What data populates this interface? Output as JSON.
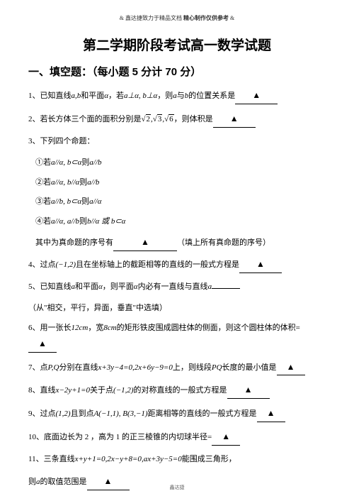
{
  "header": {
    "left": "& 鑫达捷致力于精品文档",
    "center": "精心制作仅供参考",
    "right": "&"
  },
  "title": "第二学期阶段考试高一数学试题",
  "section1": "一、填空题：（每小题 5 分计 70 分）",
  "q1": {
    "num": "1、",
    "pre": "已知直线",
    "var1": "a,b",
    "t2": "和平面",
    "var2": "α",
    "t3": "，若",
    "expr": "a⊥α, b⊥α",
    "t4": "，则",
    "v3": "a",
    "t5": "与",
    "v4": "b",
    "t6": "的位置关系是",
    "tri": "▲"
  },
  "q2": {
    "num": "2、",
    "t1": "若长方体三个面的面积分别是",
    "r1": "2",
    "r2": "3",
    "r3": "6",
    "t2": "，则体积是",
    "tri": "▲"
  },
  "q3": {
    "num": "3、",
    "t1": "下列四个命题："
  },
  "q3a": {
    "num": "①",
    "t": "若",
    "e": "a//α, b⊂α",
    "tail": "则",
    "e2": "a//b"
  },
  "q3b": {
    "num": "②",
    "t": "若",
    "e": "a//α, b//α",
    "tail": "则",
    "e2": "a//b"
  },
  "q3c": {
    "num": "③",
    "t": "若",
    "e": "a//b, b⊂α",
    "tail": "则",
    "e2": "a//α"
  },
  "q3d": {
    "num": "④",
    "t": "若",
    "e": "a//α, a//b",
    "tail": "则",
    "e2": "b//α 或 b⊂α"
  },
  "q3e": {
    "t1": "其中为真命题的序号有",
    "tri": "▲",
    "t2": "（填上所有真命题的序号）"
  },
  "q4": {
    "num": "4、",
    "t1": "过点",
    "pt": "(−1,2)",
    "t2": "且在坐标轴上的截距相等的直线的一般式方程是",
    "tri": "▲"
  },
  "q5": {
    "num": "5、",
    "t1": "已知直线",
    "v1": "a",
    "t2": "和平面",
    "v2": "α",
    "t3": "，则平面",
    "v3": "α",
    "t4": "内必有一直线与直线",
    "v4": "a",
    "hint": "（从\"相交，平行，异面，垂直\"中选填）"
  },
  "q6": {
    "num": "6、",
    "t1": "用一张长",
    "l": "12cm",
    "t2": "，宽",
    "w": "8cm",
    "t3": "的矩形铁皮围成圆柱体的侧面，则这个圆柱体的体积=",
    "tri": "▲"
  },
  "q7": {
    "num": "7、",
    "t1": "点",
    "pts": "P,Q",
    "t2": "分别在直线",
    "l1": "x+3y−4=0",
    "c": ",",
    "l2": "2x+6y−9=0",
    "t3": "上，则线段",
    "seg": "PQ",
    "t4": "长度的最小值是",
    "tri": "▲"
  },
  "q8": {
    "num": "8、",
    "t1": "直线",
    "l": "x−2y+1=0",
    "t2": "关于点",
    "pt": "(−1,2)",
    "t3": "的对称直线的一般式方程是",
    "tri": "▲"
  },
  "q9": {
    "num": "9、",
    "t1": "过点",
    "pt": "(1,2)",
    "t2": "且到点",
    "a": "A(−1,1), B(3,−1)",
    "t3": "距离相等的直线的一般式方程是",
    "tri": "▲"
  },
  "q10": {
    "num": "10、",
    "t1": "底面边长为 2 ，高为 1 的正三棱锥的内切球半径=",
    "tri": "▲"
  },
  "q11": {
    "num": "11、",
    "t1": "三条直线",
    "l1": "x+y+1=0",
    "c": ",",
    "l2": "2x−y+8=0",
    "c2": ",",
    "l3": "ax+3y−5=0",
    "t2": "能围成三角形，",
    "t3": "则",
    "v": "a",
    "t4": "的取值范围是",
    "tri": "▲"
  },
  "footer": "鑫达捷"
}
